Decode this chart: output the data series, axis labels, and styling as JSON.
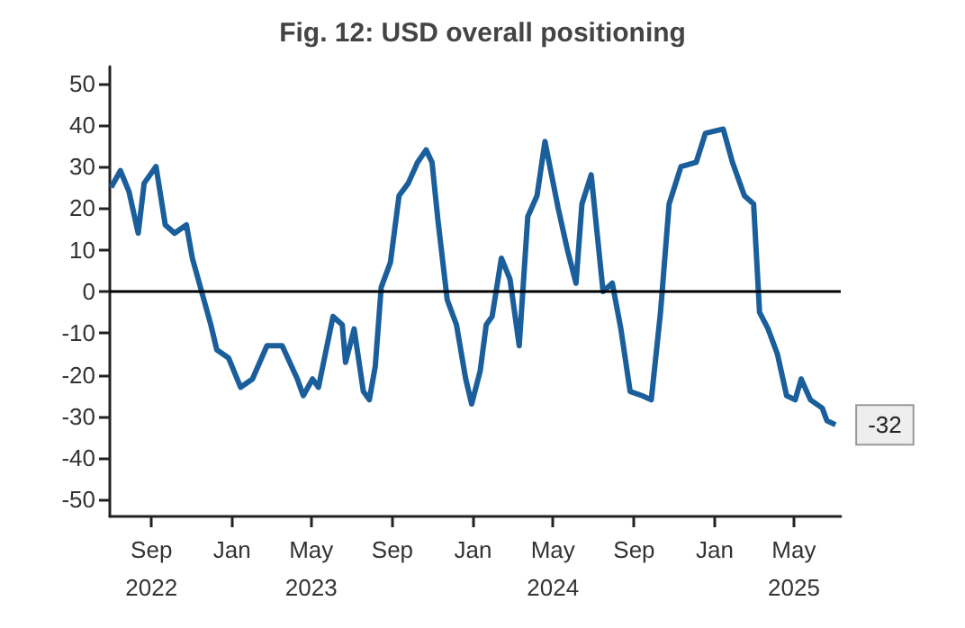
{
  "chart_data": {
    "type": "line",
    "title": "Fig. 12: USD overall positioning",
    "x": [
      "2022-07-02",
      "2022-07-16",
      "2022-07-29",
      "2022-08-12",
      "2022-08-21",
      "2022-09-08",
      "2022-09-22",
      "2022-10-06",
      "2022-10-24",
      "2022-11-02",
      "2022-11-16",
      "2022-11-30",
      "2022-12-09",
      "2022-12-27",
      "2023-01-14",
      "2023-02-01",
      "2023-02-23",
      "2023-03-18",
      "2023-04-10",
      "2023-04-19",
      "2023-05-03",
      "2023-05-12",
      "2023-06-03",
      "2023-06-17",
      "2023-06-22",
      "2023-07-05",
      "2023-07-19",
      "2023-07-28",
      "2023-08-06",
      "2023-08-15",
      "2023-08-29",
      "2023-09-11",
      "2023-09-25",
      "2023-10-09",
      "2023-10-22",
      "2023-10-31",
      "2023-11-09",
      "2023-11-23",
      "2023-12-07",
      "2023-12-21",
      "2023-12-30",
      "2024-01-12",
      "2024-01-21",
      "2024-01-30",
      "2024-02-13",
      "2024-02-26",
      "2024-03-11",
      "2024-03-24",
      "2024-04-07",
      "2024-04-19",
      "2024-05-09",
      "2024-05-23",
      "2024-06-05",
      "2024-06-14",
      "2024-06-28",
      "2024-07-07",
      "2024-07-16",
      "2024-07-30",
      "2024-08-12",
      "2024-08-26",
      "2024-09-13",
      "2024-09-27",
      "2024-10-11",
      "2024-10-24",
      "2024-11-11",
      "2024-12-04",
      "2024-12-18",
      "2025-01-14",
      "2025-01-28",
      "2025-02-15",
      "2025-03-01",
      "2025-03-10",
      "2025-03-23",
      "2025-04-06",
      "2025-04-20",
      "2025-05-03",
      "2025-05-12",
      "2025-05-26",
      "2025-06-13",
      "2025-06-20",
      "2025-07-03"
    ],
    "series": [
      {
        "color": "#1a5f9b",
        "values": [
          25,
          29,
          24,
          14,
          26,
          30,
          16,
          14,
          16,
          8,
          0,
          -8,
          -14,
          -16,
          -23,
          -21,
          -13,
          -13,
          -21,
          -25,
          -21,
          -23,
          -6,
          -8,
          -17,
          -9,
          -24,
          -26,
          -18,
          1,
          7,
          23,
          26,
          31,
          34,
          31,
          17,
          -2,
          -8,
          -21,
          -27,
          -19,
          -8,
          -6,
          8,
          3,
          -13,
          18,
          23,
          36,
          20,
          10,
          2,
          21,
          28,
          14,
          0,
          2,
          -9,
          -24,
          -25,
          -26,
          -5,
          21,
          30,
          31,
          38,
          39,
          31,
          23,
          21,
          -5,
          -9,
          -15,
          -25,
          -26,
          -21,
          -26,
          -28,
          -31,
          -32
        ]
      }
    ],
    "xlim": [
      "2022-06-30",
      "2025-07-11"
    ],
    "xticks": [
      {
        "value": "2022-09-01",
        "label": "Sep\n2022"
      },
      {
        "value": "2023-01-01",
        "label": "Jan"
      },
      {
        "value": "2023-05-01",
        "label": "May\n2023"
      },
      {
        "value": "2023-09-01",
        "label": "Sep"
      },
      {
        "value": "2024-01-01",
        "label": "Jan"
      },
      {
        "value": "2024-05-01",
        "label": "May\n2024"
      },
      {
        "value": "2024-09-01",
        "label": "Sep"
      },
      {
        "value": "2025-01-01",
        "label": "Jan"
      },
      {
        "value": "2025-05-01",
        "label": "May\n2025"
      }
    ],
    "ylim": [
      -54,
      54
    ],
    "yticks": [
      -50,
      -40,
      -30,
      -20,
      -10,
      0,
      10,
      20,
      30,
      40,
      50
    ],
    "grid": false,
    "marker": "none",
    "line_style": "solid",
    "ref_lines": [
      {
        "axis": "y",
        "value": 0,
        "color": "#000000"
      }
    ],
    "annotations": [
      {
        "text": "-32",
        "x": "2025-07-03",
        "y": -32
      }
    ]
  }
}
